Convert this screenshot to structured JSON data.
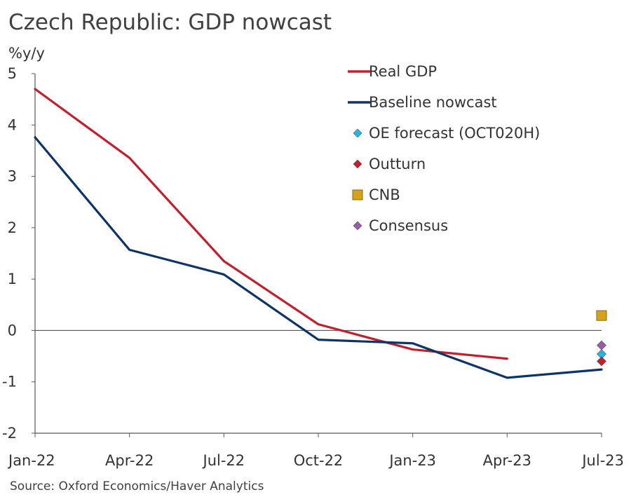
{
  "header": {
    "title": "Czech Republic: GDP nowcast",
    "unit": "%y/y"
  },
  "footer": {
    "source": "Source: Oxford Economics/Haver Analytics"
  },
  "chart_data": {
    "type": "line",
    "title": "Czech Republic: GDP nowcast",
    "ylabel": "%y/y",
    "xlabel": "",
    "ylim": [
      -2,
      5
    ],
    "yticks": [
      "5",
      "4",
      "3",
      "2",
      "1",
      "0",
      "-1",
      "-2"
    ],
    "categories": [
      "Jan-22",
      "Apr-22",
      "Jul-22",
      "Oct-22",
      "Jan-23",
      "Apr-23",
      "Jul-23"
    ],
    "legend_position": "top-right",
    "series": [
      {
        "name": "Real GDP",
        "kind": "line",
        "color": "#c0212e",
        "values": [
          4.7,
          3.36,
          1.35,
          0.12,
          -0.37,
          -0.55,
          null
        ]
      },
      {
        "name": "Baseline nowcast",
        "kind": "line",
        "color": "#0e3466",
        "values": [
          3.76,
          1.57,
          1.09,
          -0.18,
          -0.25,
          -0.92,
          -0.76
        ]
      },
      {
        "name": "OE forecast (OCT020H)",
        "kind": "diamond",
        "color": "#27b6e2",
        "values": [
          null,
          null,
          null,
          null,
          null,
          null,
          -0.46
        ]
      },
      {
        "name": "Outturn",
        "kind": "diamond",
        "color": "#c0212e",
        "values": [
          null,
          null,
          null,
          null,
          null,
          null,
          -0.6
        ]
      },
      {
        "name": "CNB",
        "kind": "square",
        "color": "#d4a21c",
        "values": [
          null,
          null,
          null,
          null,
          null,
          null,
          0.29
        ]
      },
      {
        "name": "Consensus",
        "kind": "diamond",
        "color": "#9b5ca6",
        "values": [
          null,
          null,
          null,
          null,
          null,
          null,
          -0.29
        ]
      }
    ]
  }
}
